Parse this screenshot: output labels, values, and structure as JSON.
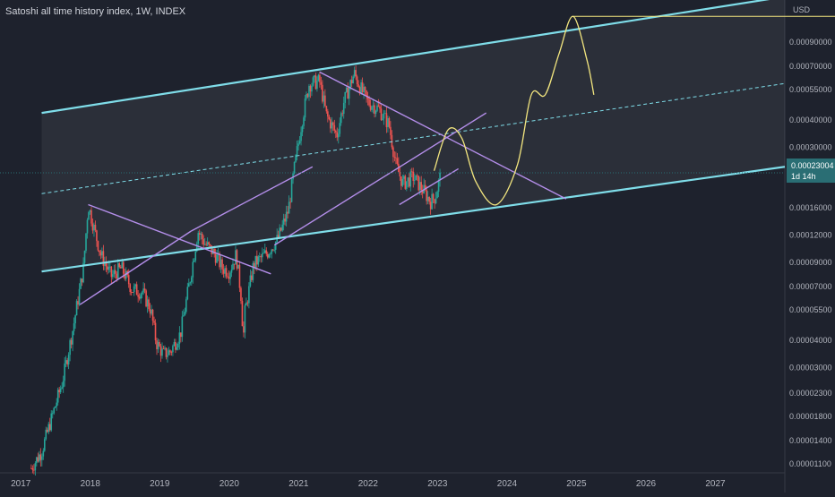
{
  "header": {
    "title": "Satoshi all time history index, 1W, INDEX",
    "currency": "USD"
  },
  "last_price": {
    "value": "0.00023004",
    "countdown": "1d 14h"
  },
  "colors": {
    "background": "#1e222d",
    "channel": "#7fdde9",
    "trendlines": "#b48eea",
    "projection": "#f3e67f",
    "price_line": "#2a6e74",
    "candle_up": "#26a69a",
    "candle_down": "#ef5350"
  },
  "chart_data": {
    "type": "candlestick",
    "title": "Satoshi all time history index, 1W, INDEX",
    "interval": "1W",
    "y_scale": "log",
    "ylim": [
      1e-05,
      0.0014
    ],
    "xlim": [
      2016.7,
      2028.0
    ],
    "x_ticks": [
      "2017",
      "2018",
      "2019",
      "2020",
      "2021",
      "2022",
      "2023",
      "2024",
      "2025",
      "2026",
      "2027"
    ],
    "y_ticks": [
      "0.00001100",
      "0.00001400",
      "0.00001800",
      "0.00002300",
      "0.00003000",
      "0.00004000",
      "0.00005500",
      "0.00007000",
      "0.00009000",
      "0.00012000",
      "0.00016000",
      "0.00030000",
      "0.00040000",
      "0.00055000",
      "0.00070000",
      "0.00090000"
    ],
    "price_points": [
      [
        2017.15,
        1.05e-05
      ],
      [
        2017.3,
        1.25e-05
      ],
      [
        2017.45,
        1.8e-05
      ],
      [
        2017.6,
        2.6e-05
      ],
      [
        2017.75,
        4.5e-05
      ],
      [
        2017.9,
        8.5e-05
      ],
      [
        2017.97,
        0.000165
      ],
      [
        2018.05,
        0.00013
      ],
      [
        2018.15,
        9.8e-05
      ],
      [
        2018.3,
        7.8e-05
      ],
      [
        2018.45,
        8.5e-05
      ],
      [
        2018.6,
        6.8e-05
      ],
      [
        2018.75,
        6.6e-05
      ],
      [
        2018.87,
        5.5e-05
      ],
      [
        2018.95,
        3.9e-05
      ],
      [
        2019.05,
        3.45e-05
      ],
      [
        2019.15,
        3.55e-05
      ],
      [
        2019.3,
        4.3e-05
      ],
      [
        2019.45,
        8e-05
      ],
      [
        2019.55,
        0.000125
      ],
      [
        2019.65,
        0.00011
      ],
      [
        2019.8,
        9.75e-05
      ],
      [
        2019.9,
        8.5e-05
      ],
      [
        2020.0,
        8.2e-05
      ],
      [
        2020.1,
        9.8e-05
      ],
      [
        2020.18,
        6e-05
      ],
      [
        2020.2,
        3.8e-05
      ],
      [
        2020.22,
        5.2e-05
      ],
      [
        2020.35,
        8.8e-05
      ],
      [
        2020.55,
        0.0001
      ],
      [
        2020.7,
        0.000115
      ],
      [
        2020.85,
        0.000155
      ],
      [
        2020.95,
        0.000255
      ],
      [
        2021.05,
        0.0004
      ],
      [
        2021.15,
        0.00058
      ],
      [
        2021.3,
        0.0006
      ],
      [
        2021.4,
        0.00042
      ],
      [
        2021.55,
        0.00034
      ],
      [
        2021.65,
        0.00048
      ],
      [
        2021.8,
        0.00065
      ],
      [
        2021.9,
        0.00055
      ],
      [
        2022.0,
        0.00048
      ],
      [
        2022.15,
        0.00045
      ],
      [
        2022.3,
        0.00038
      ],
      [
        2022.4,
        0.00025
      ],
      [
        2022.5,
        0.000205
      ],
      [
        2022.65,
        0.00022
      ],
      [
        2022.8,
        0.00019
      ],
      [
        2022.9,
        0.00017
      ],
      [
        2022.97,
        0.00018
      ],
      [
        2023.05,
        0.00023
      ]
    ],
    "channel": {
      "upper": [
        [
          2017.3,
          0.00043
        ],
        [
          2028.0,
          0.00145
        ]
      ],
      "middle": [
        [
          2017.3,
          0.000185
        ],
        [
          2028.0,
          0.000585
        ]
      ],
      "lower": [
        [
          2017.3,
          8.2e-05
        ],
        [
          2028.0,
          0.000245
        ]
      ],
      "shaded_from_x": 2017.3
    },
    "trendlines": [
      [
        [
          2017.97,
          0.000165
        ],
        [
          2020.6,
          8e-05
        ]
      ],
      [
        [
          2017.85,
          5.8e-05
        ],
        [
          2019.45,
          0.000125
        ]
      ],
      [
        [
          2019.45,
          0.000125
        ],
        [
          2021.2,
          0.000245
        ]
      ],
      [
        [
          2020.65,
          0.000108
        ],
        [
          2023.7,
          0.00043
        ]
      ],
      [
        [
          2021.3,
          0.00066
        ],
        [
          2024.85,
          0.000175
        ]
      ],
      [
        [
          2022.45,
          0.000165
        ],
        [
          2023.3,
          0.00024
        ]
      ]
    ],
    "projection": [
      [
        2022.95,
        0.000235
      ],
      [
        2023.15,
        0.00036
      ],
      [
        2023.35,
        0.00033
      ],
      [
        2023.55,
        0.00021
      ],
      [
        2023.85,
        0.000165
      ],
      [
        2024.15,
        0.00025
      ],
      [
        2024.35,
        0.00052
      ],
      [
        2024.55,
        0.00052
      ],
      [
        2024.75,
        0.0008
      ],
      [
        2024.95,
        0.00118
      ],
      [
        2025.15,
        0.00075
      ],
      [
        2025.25,
        0.00052
      ]
    ],
    "horizontal_level": {
      "y": 0.00118,
      "x_from": 2024.95
    }
  }
}
